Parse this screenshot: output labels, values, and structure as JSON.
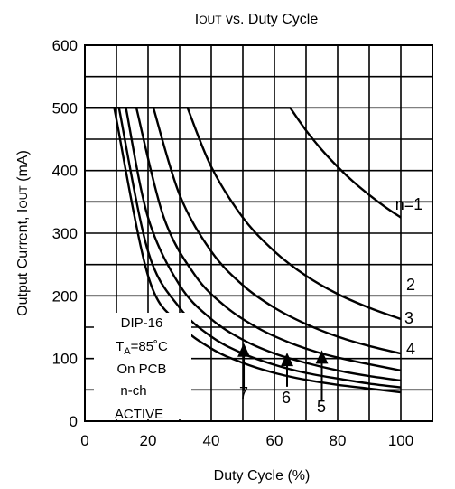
{
  "chart_data": {
    "type": "line",
    "title": "IOUT vs. Duty Cycle",
    "title_parts": {
      "sym": "I",
      "sub": "OUT",
      "rest": " vs. Duty  Cycle"
    },
    "xlabel": "Duty Cycle (%)",
    "ylabel": "Output Current, IOUT (mA)",
    "ylabel_parts": {
      "pre": "Output Current, I",
      "sub": "OUT",
      "post": " (mA)"
    },
    "xlim": [
      0,
      110
    ],
    "ylim": [
      0,
      600
    ],
    "x_ticks": [
      0,
      20,
      40,
      60,
      80,
      100
    ],
    "y_ticks": [
      0,
      100,
      200,
      300,
      400,
      500,
      600
    ],
    "x_tick_labels": [
      "0",
      "20",
      "40",
      "60",
      "80",
      "100"
    ],
    "y_tick_labels": [
      "0",
      "100",
      "200",
      "300",
      "400",
      "500",
      "600"
    ],
    "grid": true,
    "x_grid_step": 10,
    "y_grid_step": 50,
    "series": [
      {
        "name": "n=1",
        "x": [
          65,
          70,
          75,
          80,
          85,
          90,
          95,
          100
        ],
        "y": [
          500,
          464,
          433,
          406,
          382,
          361,
          342,
          325
        ]
      },
      {
        "name": "2",
        "x": [
          32.5,
          40,
          50,
          60,
          70,
          80,
          90,
          100
        ],
        "y": [
          500,
          406,
          325,
          271,
          232,
          203,
          181,
          163
        ]
      },
      {
        "name": "3",
        "x": [
          21.7,
          30,
          40,
          50,
          60,
          70,
          80,
          90,
          100
        ],
        "y": [
          500,
          361,
          271,
          217,
          181,
          155,
          135,
          120,
          108
        ]
      },
      {
        "name": "4",
        "x": [
          16.3,
          25,
          35,
          45,
          55,
          65,
          75,
          85,
          100
        ],
        "y": [
          500,
          325,
          232,
          181,
          148,
          125,
          108,
          96,
          81
        ]
      },
      {
        "name": "5",
        "x": [
          13,
          20,
          30,
          40,
          50,
          60,
          70,
          80,
          90,
          100
        ],
        "y": [
          500,
          325,
          217,
          163,
          130,
          108,
          93,
          81,
          72,
          65
        ]
      },
      {
        "name": "6",
        "x": [
          10.8,
          20,
          30,
          40,
          50,
          60,
          70,
          80,
          90,
          100
        ],
        "y": [
          500,
          271,
          181,
          135,
          108,
          90,
          77,
          68,
          60,
          54
        ]
      },
      {
        "name": "7",
        "x": [
          9.3,
          20,
          30,
          40,
          50,
          60,
          70,
          80,
          90,
          100
        ],
        "y": [
          500,
          232,
          155,
          116,
          93,
          77,
          66,
          58,
          52,
          46
        ]
      }
    ],
    "curve_labels": [
      "n=1",
      "2",
      "3",
      "4",
      "5",
      "6",
      "7"
    ],
    "arrows": [
      {
        "label": "7",
        "x": 50.3,
        "y_from": 48,
        "y_to": 123
      },
      {
        "label": "6",
        "x": 64,
        "y_from": 55,
        "y_to": 108
      },
      {
        "label": "5",
        "x": 75,
        "y_from": 33,
        "y_to": 112
      }
    ],
    "annotations": {
      "line1": "DIP-16",
      "line2_pre": "T",
      "line2_sub": "A",
      "line2_post": "=85˚C",
      "line3": "On PCB",
      "line4": "n-ch",
      "line5": "ACTIVE"
    }
  }
}
